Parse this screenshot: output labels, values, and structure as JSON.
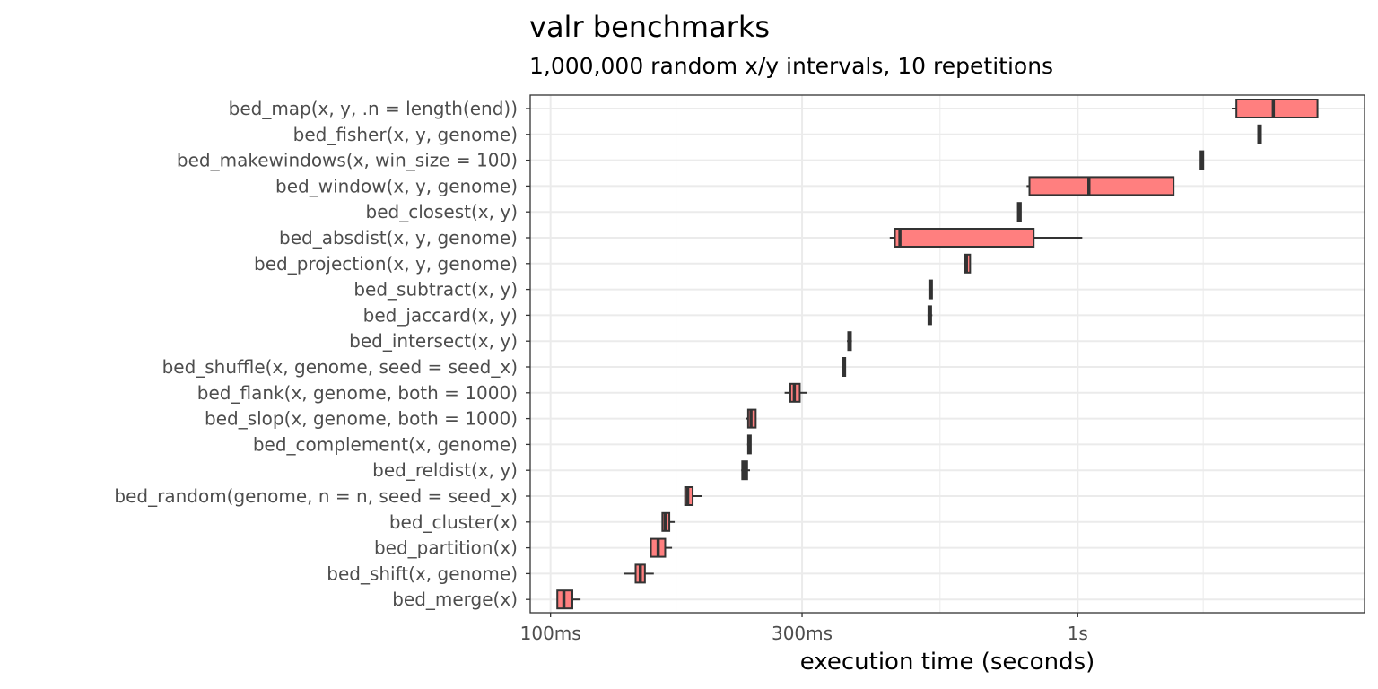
{
  "chart_data": {
    "type": "boxplot",
    "orientation": "horizontal",
    "title": "valr benchmarks",
    "subtitle": "1,000,000 random x/y intervals, 10 repetitions",
    "xlabel": "execution time (seconds)",
    "ylabel": "",
    "x_scale": "log10",
    "xlim": [
      0.0915,
      3.5
    ],
    "x_ticks": [
      {
        "value": 0.1,
        "label": "100ms"
      },
      {
        "value": 0.3,
        "label": "300ms"
      },
      {
        "value": 1.0,
        "label": "1s"
      }
    ],
    "x_minor_gridlines": [
      0.173,
      0.548,
      1.73
    ],
    "grid": true,
    "legend": "none",
    "box_fill": "#ff7f7f",
    "box_stroke": "#333333",
    "categories": [
      "bed_map(x, y, .n = length(end))",
      "bed_fisher(x, y, genome)",
      "bed_makewindows(x, win_size = 100)",
      "bed_window(x, y, genome)",
      "bed_closest(x, y)",
      "bed_absdist(x, y, genome)",
      "bed_projection(x, y, genome)",
      "bed_subtract(x, y)",
      "bed_jaccard(x, y)",
      "bed_intersect(x, y)",
      "bed_shuffle(x, genome, seed = seed_x)",
      "bed_flank(x, genome, both = 1000)",
      "bed_slop(x, genome, both = 1000)",
      "bed_complement(x, genome)",
      "bed_reldist(x, y)",
      "bed_random(genome, n = n, seed = seed_x)",
      "bed_cluster(x)",
      "bed_partition(x)",
      "bed_shift(x, genome)",
      "bed_merge(x)"
    ],
    "boxes": [
      {
        "min": 1.96,
        "q1": 2.0,
        "median": 2.35,
        "q3": 2.85,
        "max": 2.85
      },
      {
        "min": 2.2,
        "q1": 2.2,
        "median": 2.21,
        "q3": 2.22,
        "max": 2.22
      },
      {
        "min": 1.71,
        "q1": 1.71,
        "median": 1.72,
        "q3": 1.73,
        "max": 1.73
      },
      {
        "min": 0.8,
        "q1": 0.81,
        "median": 1.05,
        "q3": 1.52,
        "max": 1.52
      },
      {
        "min": 0.77,
        "q1": 0.77,
        "median": 0.775,
        "q3": 0.78,
        "max": 0.78
      },
      {
        "min": 0.44,
        "q1": 0.45,
        "median": 0.46,
        "q3": 0.825,
        "max": 1.02
      },
      {
        "min": 0.61,
        "q1": 0.61,
        "median": 0.615,
        "q3": 0.625,
        "max": 0.625
      },
      {
        "min": 0.523,
        "q1": 0.523,
        "median": 0.525,
        "q3": 0.527,
        "max": 0.527
      },
      {
        "min": 0.519,
        "q1": 0.521,
        "median": 0.523,
        "q3": 0.525,
        "max": 0.53
      },
      {
        "min": 0.365,
        "q1": 0.367,
        "median": 0.369,
        "q3": 0.371,
        "max": 0.373
      },
      {
        "min": 0.357,
        "q1": 0.358,
        "median": 0.359,
        "q3": 0.361,
        "max": 0.362
      },
      {
        "min": 0.278,
        "q1": 0.285,
        "median": 0.29,
        "q3": 0.297,
        "max": 0.307
      },
      {
        "min": 0.235,
        "q1": 0.237,
        "median": 0.24,
        "q3": 0.245,
        "max": 0.245
      },
      {
        "min": 0.236,
        "q1": 0.237,
        "median": 0.238,
        "q3": 0.239,
        "max": 0.24
      },
      {
        "min": 0.23,
        "q1": 0.231,
        "median": 0.233,
        "q3": 0.236,
        "max": 0.239
      },
      {
        "min": 0.18,
        "q1": 0.18,
        "median": 0.182,
        "q3": 0.186,
        "max": 0.194
      },
      {
        "min": 0.163,
        "q1": 0.163,
        "median": 0.165,
        "q3": 0.168,
        "max": 0.172
      },
      {
        "min": 0.155,
        "q1": 0.155,
        "median": 0.16,
        "q3": 0.165,
        "max": 0.17
      },
      {
        "min": 0.138,
        "q1": 0.145,
        "median": 0.148,
        "q3": 0.151,
        "max": 0.157
      },
      {
        "min": 0.103,
        "q1": 0.103,
        "median": 0.106,
        "q3": 0.11,
        "max": 0.114
      }
    ]
  }
}
